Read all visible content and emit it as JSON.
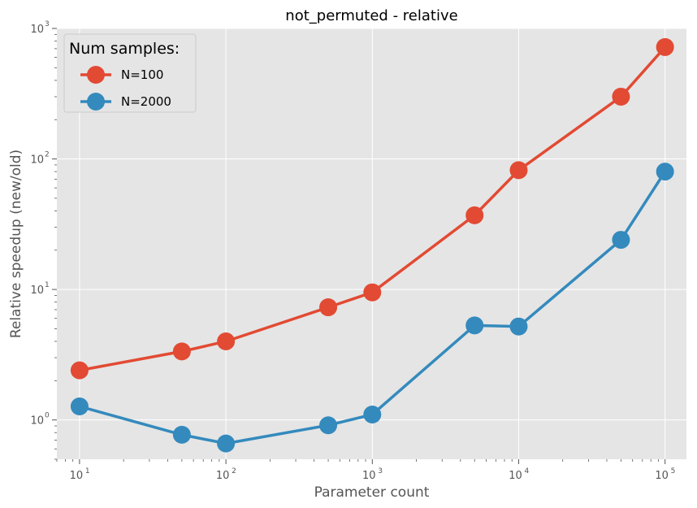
{
  "chart_data": {
    "type": "line",
    "title": "not_permuted - relative",
    "xlabel": "Parameter count",
    "ylabel": "Relative speedup (new/old)",
    "x_scale": "log",
    "y_scale": "log",
    "xlim": [
      7,
      140000
    ],
    "ylim": [
      0.5,
      1000
    ],
    "x_ticks": [
      10,
      100,
      1000,
      10000,
      100000
    ],
    "y_ticks": [
      1,
      10,
      100,
      1000
    ],
    "grid": true,
    "legend": {
      "title": "Num samples:",
      "placement": "top-left"
    },
    "x": [
      10,
      50,
      100,
      500,
      1000,
      5000,
      10000,
      50000,
      100000
    ],
    "series": [
      {
        "name": "N=100",
        "color": "#E24A33",
        "values": [
          2.4,
          3.35,
          4.0,
          7.3,
          9.5,
          37,
          82,
          300,
          720
        ]
      },
      {
        "name": "N=2000",
        "color": "#348ABD",
        "values": [
          1.27,
          0.77,
          0.66,
          0.91,
          1.1,
          5.3,
          5.2,
          24,
          80
        ]
      }
    ],
    "style": {
      "plot_background": "#E5E5E5",
      "grid_color": "#FFFFFF",
      "tick_color": "#555555"
    }
  }
}
